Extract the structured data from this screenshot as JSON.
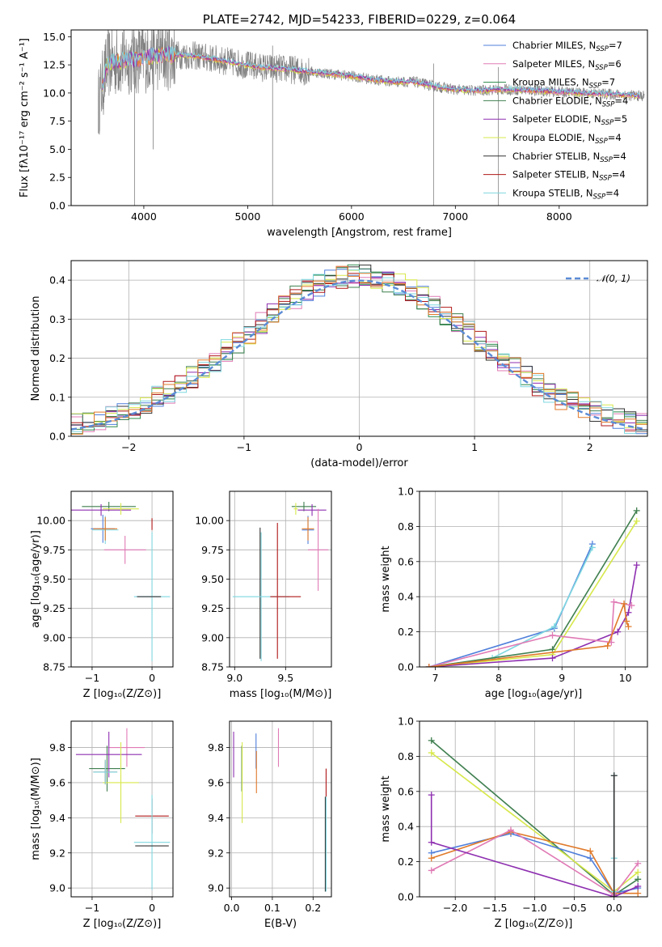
{
  "colors": {
    "chabrier_miles": "#4f7fdb",
    "salpeter_miles": "#e07ab5",
    "kroupa_miles": "#2a8a4a",
    "chabrier_elodie": "#3f7f4f",
    "salpeter_elodie": "#8e2fb0",
    "kroupa_elodie": "#d7e84a",
    "chabrier_stelib": "#333333",
    "salpeter_stelib": "#b01818",
    "kroupa_stelib": "#7fd7e0",
    "data": "#808080",
    "normal": "#5b8bd6",
    "orange": "#e07a2a"
  },
  "chart_data": [
    {
      "id": "spectrum",
      "type": "line",
      "title": "PLATE=2742, MJD=54233, FIBERID=0229, z=0.064",
      "xlabel": "wavelength [Angstrom, rest frame]",
      "ylabel": "Flux [fλ10⁻¹⁷ erg cm⁻² s⁻¹ A⁻¹]",
      "xlim": [
        3300,
        8850
      ],
      "ylim": [
        0,
        15.6
      ],
      "xticks": [
        4000,
        5000,
        6000,
        7000,
        8000
      ],
      "yticks": [
        0.0,
        2.5,
        5.0,
        7.5,
        10.0,
        12.5,
        15.0
      ],
      "legend_position": "top-right",
      "legend": [
        {
          "label": "Chabrier MILES, N",
          "sub": "SSP",
          "val": "=7"
        },
        {
          "label": "Salpeter MILES, N",
          "sub": "SSP",
          "val": "=6"
        },
        {
          "label": "Kroupa MILES, N",
          "sub": "SSP",
          "val": "=7"
        },
        {
          "label": "Chabrier ELODIE, N",
          "sub": "SSP",
          "val": "=4"
        },
        {
          "label": "Salpeter ELODIE, N",
          "sub": "SSP",
          "val": "=5"
        },
        {
          "label": "Kroupa ELODIE, N",
          "sub": "SSP",
          "val": "=4"
        },
        {
          "label": "Chabrier STELIB, N",
          "sub": "SSP",
          "val": "=4"
        },
        {
          "label": "Salpeter STELIB, N",
          "sub": "SSP",
          "val": "=4"
        },
        {
          "label": "Kroupa STELIB, N",
          "sub": "SSP",
          "val": "=4"
        }
      ],
      "continuum": {
        "x": [
          3560,
          3650,
          3800,
          3950,
          4100,
          4300,
          4500,
          4800,
          5100,
          5400,
          5700,
          6000,
          6200,
          6400,
          6600,
          6800,
          7000,
          7200,
          7400,
          7600,
          7800,
          8000,
          8200,
          8500,
          8850
        ],
        "y": [
          9.0,
          12.6,
          12.9,
          13.0,
          13.3,
          13.4,
          13.3,
          12.8,
          12.3,
          12.1,
          11.8,
          11.5,
          11.2,
          11.0,
          11.0,
          10.6,
          10.3,
          10.2,
          10.3,
          10.3,
          10.2,
          10.1,
          10.0,
          9.9,
          9.7
        ]
      },
      "spikes": [
        {
          "x": 3910,
          "y": 0
        },
        {
          "x": 4090,
          "y": 5.0
        },
        {
          "x": 5240,
          "y": 0
        },
        {
          "x": 6790,
          "y": 0
        },
        {
          "x": 7415,
          "y": 0
        }
      ]
    },
    {
      "id": "residuals",
      "type": "area",
      "xlabel": "(data-model)/error",
      "ylabel": "Normed distribution",
      "xlim": [
        -2.5,
        2.5
      ],
      "ylim": [
        0,
        0.45
      ],
      "xticks": [
        -2,
        -1,
        0,
        1,
        2
      ],
      "yticks": [
        0.0,
        0.1,
        0.2,
        0.3,
        0.4
      ],
      "legend": "𝒩(0, 1)",
      "legend_position": "top-right"
    },
    {
      "id": "age_vs_Z",
      "type": "scatter",
      "xlabel": "Z [log₁₀(Z/Z⊙)]",
      "ylabel": "age  [log₁₀(age/yr)]",
      "xlim": [
        -1.35,
        0.35
      ],
      "ylim": [
        8.75,
        10.25
      ],
      "xticks": [
        -1,
        0
      ],
      "yticks": [
        8.75,
        9.0,
        9.25,
        9.5,
        9.75,
        10.0
      ],
      "errorbars": [
        {
          "c": "chabrier_miles",
          "x": -0.82,
          "y": 9.93,
          "xerr": 0.2,
          "yerr": 0.12
        },
        {
          "c": "salpeter_miles",
          "x": -0.45,
          "y": 9.75,
          "xerr": 0.35,
          "yerr": 0.12
        },
        {
          "c": "kroupa_stelib",
          "x": -0.78,
          "y": 9.92,
          "xerr": 0.22,
          "yerr": 0.12
        },
        {
          "c": "chabrier_elodie",
          "x": -0.72,
          "y": 10.12,
          "xerr": 0.45,
          "yerr": 0.04
        },
        {
          "c": "salpeter_elodie",
          "x": -0.85,
          "y": 10.09,
          "xerr": 0.5,
          "yerr": 0.05
        },
        {
          "c": "kroupa_elodie",
          "x": -0.52,
          "y": 10.1,
          "xerr": 0.3,
          "yerr": 0.05
        },
        {
          "c": "orange",
          "x": -0.78,
          "y": 9.93,
          "xerr": 0.2,
          "yerr": 0.1
        },
        {
          "c": "salpeter_stelib",
          "x": 0.0,
          "y": 9.97,
          "xerr": 0.0,
          "yerr": 0.05
        },
        {
          "c": "kroupa_stelib",
          "x": 0.0,
          "y": 9.35,
          "xerr": 0.3,
          "yerr": 0.55
        },
        {
          "c": "chabrier_stelib",
          "x": -0.05,
          "y": 9.35,
          "xerr": 0.2,
          "yerr": 0.0
        }
      ]
    },
    {
      "id": "age_vs_mass",
      "type": "scatter",
      "xlabel": "mass [log₁₀(M/M⊙)]",
      "ylabel": "",
      "xlim": [
        8.95,
        9.95
      ],
      "ylim": [
        8.75,
        10.25
      ],
      "xticks": [
        9.0,
        9.5
      ],
      "yticks": [
        8.75,
        9.0,
        9.25,
        9.5,
        9.75,
        10.0
      ],
      "errorbars": [
        {
          "c": "chabrier_stelib",
          "x": 9.25,
          "y": 9.38,
          "xerr": 0.0,
          "yerr": 0.56
        },
        {
          "c": "salpeter_stelib",
          "x": 9.42,
          "y": 9.4,
          "xerr": 0.0,
          "yerr": 0.58
        },
        {
          "c": "kroupa_stelib",
          "x": 9.26,
          "y": 9.35,
          "xerr": 0.28,
          "yerr": 0.55
        },
        {
          "c": "salpeter_stelib",
          "x": 9.5,
          "y": 9.35,
          "xerr": 0.15,
          "yerr": 0.0
        },
        {
          "c": "chabrier_elodie",
          "x": 9.68,
          "y": 10.12,
          "xerr": 0.12,
          "yerr": 0.04
        },
        {
          "c": "salpeter_elodie",
          "x": 9.76,
          "y": 10.09,
          "xerr": 0.14,
          "yerr": 0.05
        },
        {
          "c": "kroupa_elodie",
          "x": 9.6,
          "y": 10.1,
          "xerr": 0.02,
          "yerr": 0.05
        },
        {
          "c": "chabrier_miles",
          "x": 9.72,
          "y": 9.92,
          "xerr": 0.06,
          "yerr": 0.12
        },
        {
          "c": "orange",
          "x": 9.72,
          "y": 9.93,
          "xerr": 0.06,
          "yerr": 0.1
        },
        {
          "c": "salpeter_miles",
          "x": 9.82,
          "y": 9.75,
          "xerr": 0.1,
          "yerr": 0.35
        }
      ]
    },
    {
      "id": "weight_vs_age",
      "type": "line",
      "xlabel": "age  [log₁₀(age/yr)]",
      "ylabel": "mass weight",
      "xlim": [
        6.75,
        10.35
      ],
      "ylim": [
        0,
        1.0
      ],
      "xticks": [
        7,
        8,
        9,
        10
      ],
      "yticks": [
        0.0,
        0.2,
        0.4,
        0.6,
        0.8,
        1.0
      ],
      "series": [
        {
          "c": "chabrier_miles",
          "x": [
            6.9,
            8.88,
            9.48
          ],
          "y": [
            0.0,
            0.22,
            0.7
          ]
        },
        {
          "c": "kroupa_stelib",
          "x": [
            6.9,
            7.9,
            8.88,
            9.48
          ],
          "y": [
            0.0,
            0.05,
            0.23,
            0.68
          ]
        },
        {
          "c": "chabrier_elodie",
          "x": [
            6.9,
            8.85,
            10.18
          ],
          "y": [
            0.0,
            0.1,
            0.89
          ]
        },
        {
          "c": "kroupa_elodie",
          "x": [
            6.9,
            8.85,
            10.18
          ],
          "y": [
            0.0,
            0.07,
            0.83
          ]
        },
        {
          "c": "salpeter_elodie",
          "x": [
            6.9,
            8.85,
            9.88,
            10.05,
            10.18
          ],
          "y": [
            0.0,
            0.05,
            0.2,
            0.31,
            0.58
          ]
        },
        {
          "c": "salpeter_miles",
          "x": [
            6.9,
            8.85,
            9.78,
            9.82,
            10.1
          ],
          "y": [
            0.0,
            0.18,
            0.14,
            0.37,
            0.35
          ]
        },
        {
          "c": "orange",
          "x": [
            6.9,
            9.72,
            9.98,
            10.02,
            10.05
          ],
          "y": [
            0.0,
            0.12,
            0.36,
            0.26,
            0.23
          ]
        }
      ]
    },
    {
      "id": "mass_vs_Z",
      "type": "scatter",
      "xlabel": "Z [log₁₀(Z/Z⊙)]",
      "ylabel": "mass [log₁₀(M/M⊙)]",
      "xlim": [
        -1.35,
        0.35
      ],
      "ylim": [
        8.95,
        9.95
      ],
      "xticks": [
        -1,
        0
      ],
      "yticks": [
        9.0,
        9.2,
        9.4,
        9.6,
        9.8
      ],
      "errorbars": [
        {
          "c": "chabrier_miles",
          "x": -0.78,
          "y": 9.66,
          "xerr": 0.2,
          "yerr": 0.06
        },
        {
          "c": "salpeter_miles",
          "x": -0.42,
          "y": 9.8,
          "xerr": 0.3,
          "yerr": 0.11
        },
        {
          "c": "chabrier_elodie",
          "x": -0.75,
          "y": 9.68,
          "xerr": 0.3,
          "yerr": 0.13
        },
        {
          "c": "salpeter_elodie",
          "x": -0.72,
          "y": 9.76,
          "xerr": 0.55,
          "yerr": 0.13
        },
        {
          "c": "kroupa_elodie",
          "x": -0.52,
          "y": 9.6,
          "xerr": 0.3,
          "yerr": 0.23
        },
        {
          "c": "orange",
          "x": -0.78,
          "y": 9.66,
          "xerr": 0.2,
          "yerr": 0.07
        },
        {
          "c": "kroupa_stelib",
          "x": -0.78,
          "y": 9.66,
          "xerr": 0.2,
          "yerr": 0.07
        },
        {
          "c": "salpeter_stelib",
          "x": 0.0,
          "y": 9.41,
          "xerr": 0.28,
          "yerr": 0.1
        },
        {
          "c": "kroupa_stelib",
          "x": 0.0,
          "y": 9.26,
          "xerr": 0.3,
          "yerr": 0.27
        },
        {
          "c": "chabrier_stelib",
          "x": 0.0,
          "y": 9.24,
          "xerr": 0.28,
          "yerr": 0.0
        }
      ]
    },
    {
      "id": "mass_vs_EBV",
      "type": "scatter",
      "xlabel": "E(B-V)",
      "ylabel": "",
      "xlim": [
        -0.005,
        0.245
      ],
      "ylim": [
        8.95,
        9.95
      ],
      "xticks": [
        0.0,
        0.1,
        0.2
      ],
      "yticks": [
        9.0,
        9.2,
        9.4,
        9.6,
        9.8
      ],
      "errorbars": [
        {
          "c": "salpeter_elodie",
          "x": 0.005,
          "y": 9.76,
          "xerr": 0,
          "yerr": 0.13
        },
        {
          "c": "chabrier_elodie",
          "x": 0.025,
          "y": 9.68,
          "xerr": 0,
          "yerr": 0.13
        },
        {
          "c": "kroupa_elodie",
          "x": 0.026,
          "y": 9.6,
          "xerr": 0,
          "yerr": 0.23
        },
        {
          "c": "chabrier_miles",
          "x": 0.06,
          "y": 9.78,
          "xerr": 0,
          "yerr": 0.1
        },
        {
          "c": "orange",
          "x": 0.061,
          "y": 9.66,
          "xerr": 0,
          "yerr": 0.12
        },
        {
          "c": "salpeter_miles",
          "x": 0.115,
          "y": 9.8,
          "xerr": 0,
          "yerr": 0.11
        },
        {
          "c": "salpeter_stelib",
          "x": 0.232,
          "y": 9.6,
          "xerr": 0,
          "yerr": 0.08
        },
        {
          "c": "chabrier_stelib",
          "x": 0.23,
          "y": 9.25,
          "xerr": 0,
          "yerr": 0.27
        },
        {
          "c": "kroupa_stelib",
          "x": 0.232,
          "y": 9.25,
          "xerr": 0,
          "yerr": 0.27
        }
      ]
    },
    {
      "id": "weight_vs_Z",
      "type": "line",
      "xlabel": "Z [log₁₀(Z/Z⊙)]",
      "ylabel": "mass weight",
      "xlim": [
        -2.45,
        0.42
      ],
      "ylim": [
        0,
        1.0
      ],
      "xticks": [
        -2.0,
        -1.5,
        -1.0,
        -0.5,
        0.0
      ],
      "yticks": [
        0.0,
        0.2,
        0.4,
        0.6,
        0.8,
        1.0
      ],
      "series": [
        {
          "c": "chabrier_elodie",
          "x": [
            -2.3,
            0.0,
            0.3
          ],
          "y": [
            0.89,
            0.01,
            0.1
          ]
        },
        {
          "c": "kroupa_elodie",
          "x": [
            -2.3,
            0.0,
            0.3
          ],
          "y": [
            0.82,
            0.03,
            0.14
          ]
        },
        {
          "c": "chabrier_miles",
          "x": [
            -2.3,
            -1.3,
            -0.3,
            0.0,
            0.3
          ],
          "y": [
            0.25,
            0.36,
            0.22,
            0.02,
            0.05
          ]
        },
        {
          "c": "orange",
          "x": [
            -2.3,
            -1.3,
            -0.3,
            0.0,
            0.3
          ],
          "y": [
            0.22,
            0.37,
            0.26,
            0.02,
            0.02
          ]
        },
        {
          "c": "salpeter_miles",
          "x": [
            -2.3,
            -1.3,
            0.0,
            0.3
          ],
          "y": [
            0.15,
            0.38,
            0.01,
            0.19
          ]
        },
        {
          "c": "salpeter_elodie",
          "x": [
            -2.3,
            -2.3,
            0.0,
            0.3
          ],
          "y": [
            0.58,
            0.31,
            0.0,
            0.06
          ]
        },
        {
          "c": "kroupa_stelib",
          "x": [
            0.0,
            0.0,
            0.0
          ],
          "y": [
            0.69,
            0.22,
            0.03
          ]
        },
        {
          "c": "chabrier_stelib",
          "x": [
            0.0,
            0.0
          ],
          "y": [
            0.69,
            0.0
          ]
        }
      ]
    }
  ]
}
